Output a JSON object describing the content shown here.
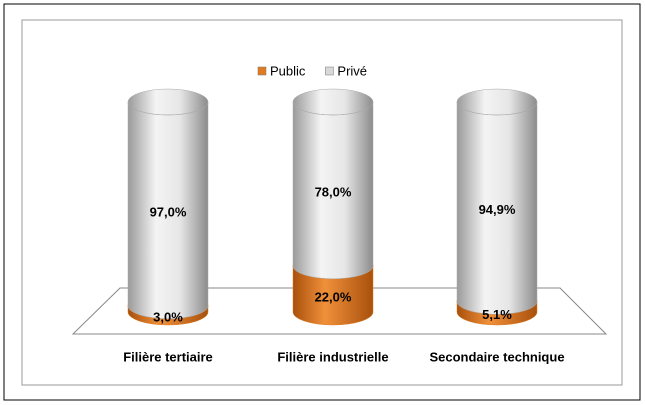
{
  "chart_data": {
    "type": "stacked-cylinder",
    "categories": [
      "Filière tertiaire",
      "Filière industrielle",
      "Secondaire technique"
    ],
    "series": [
      {
        "name": "Public",
        "color": "#e07b20",
        "values": [
          3.0,
          22.0,
          5.1
        ],
        "value_labels": [
          "3,0%",
          "22,0%",
          "5,1%"
        ]
      },
      {
        "name": "Privé",
        "color": "#d8d8d8",
        "values": [
          97.0,
          78.0,
          94.9
        ],
        "value_labels": [
          "97,0%",
          "78,0%",
          "94,9%"
        ]
      }
    ],
    "ylim": [
      0,
      100
    ],
    "legend": "top"
  }
}
